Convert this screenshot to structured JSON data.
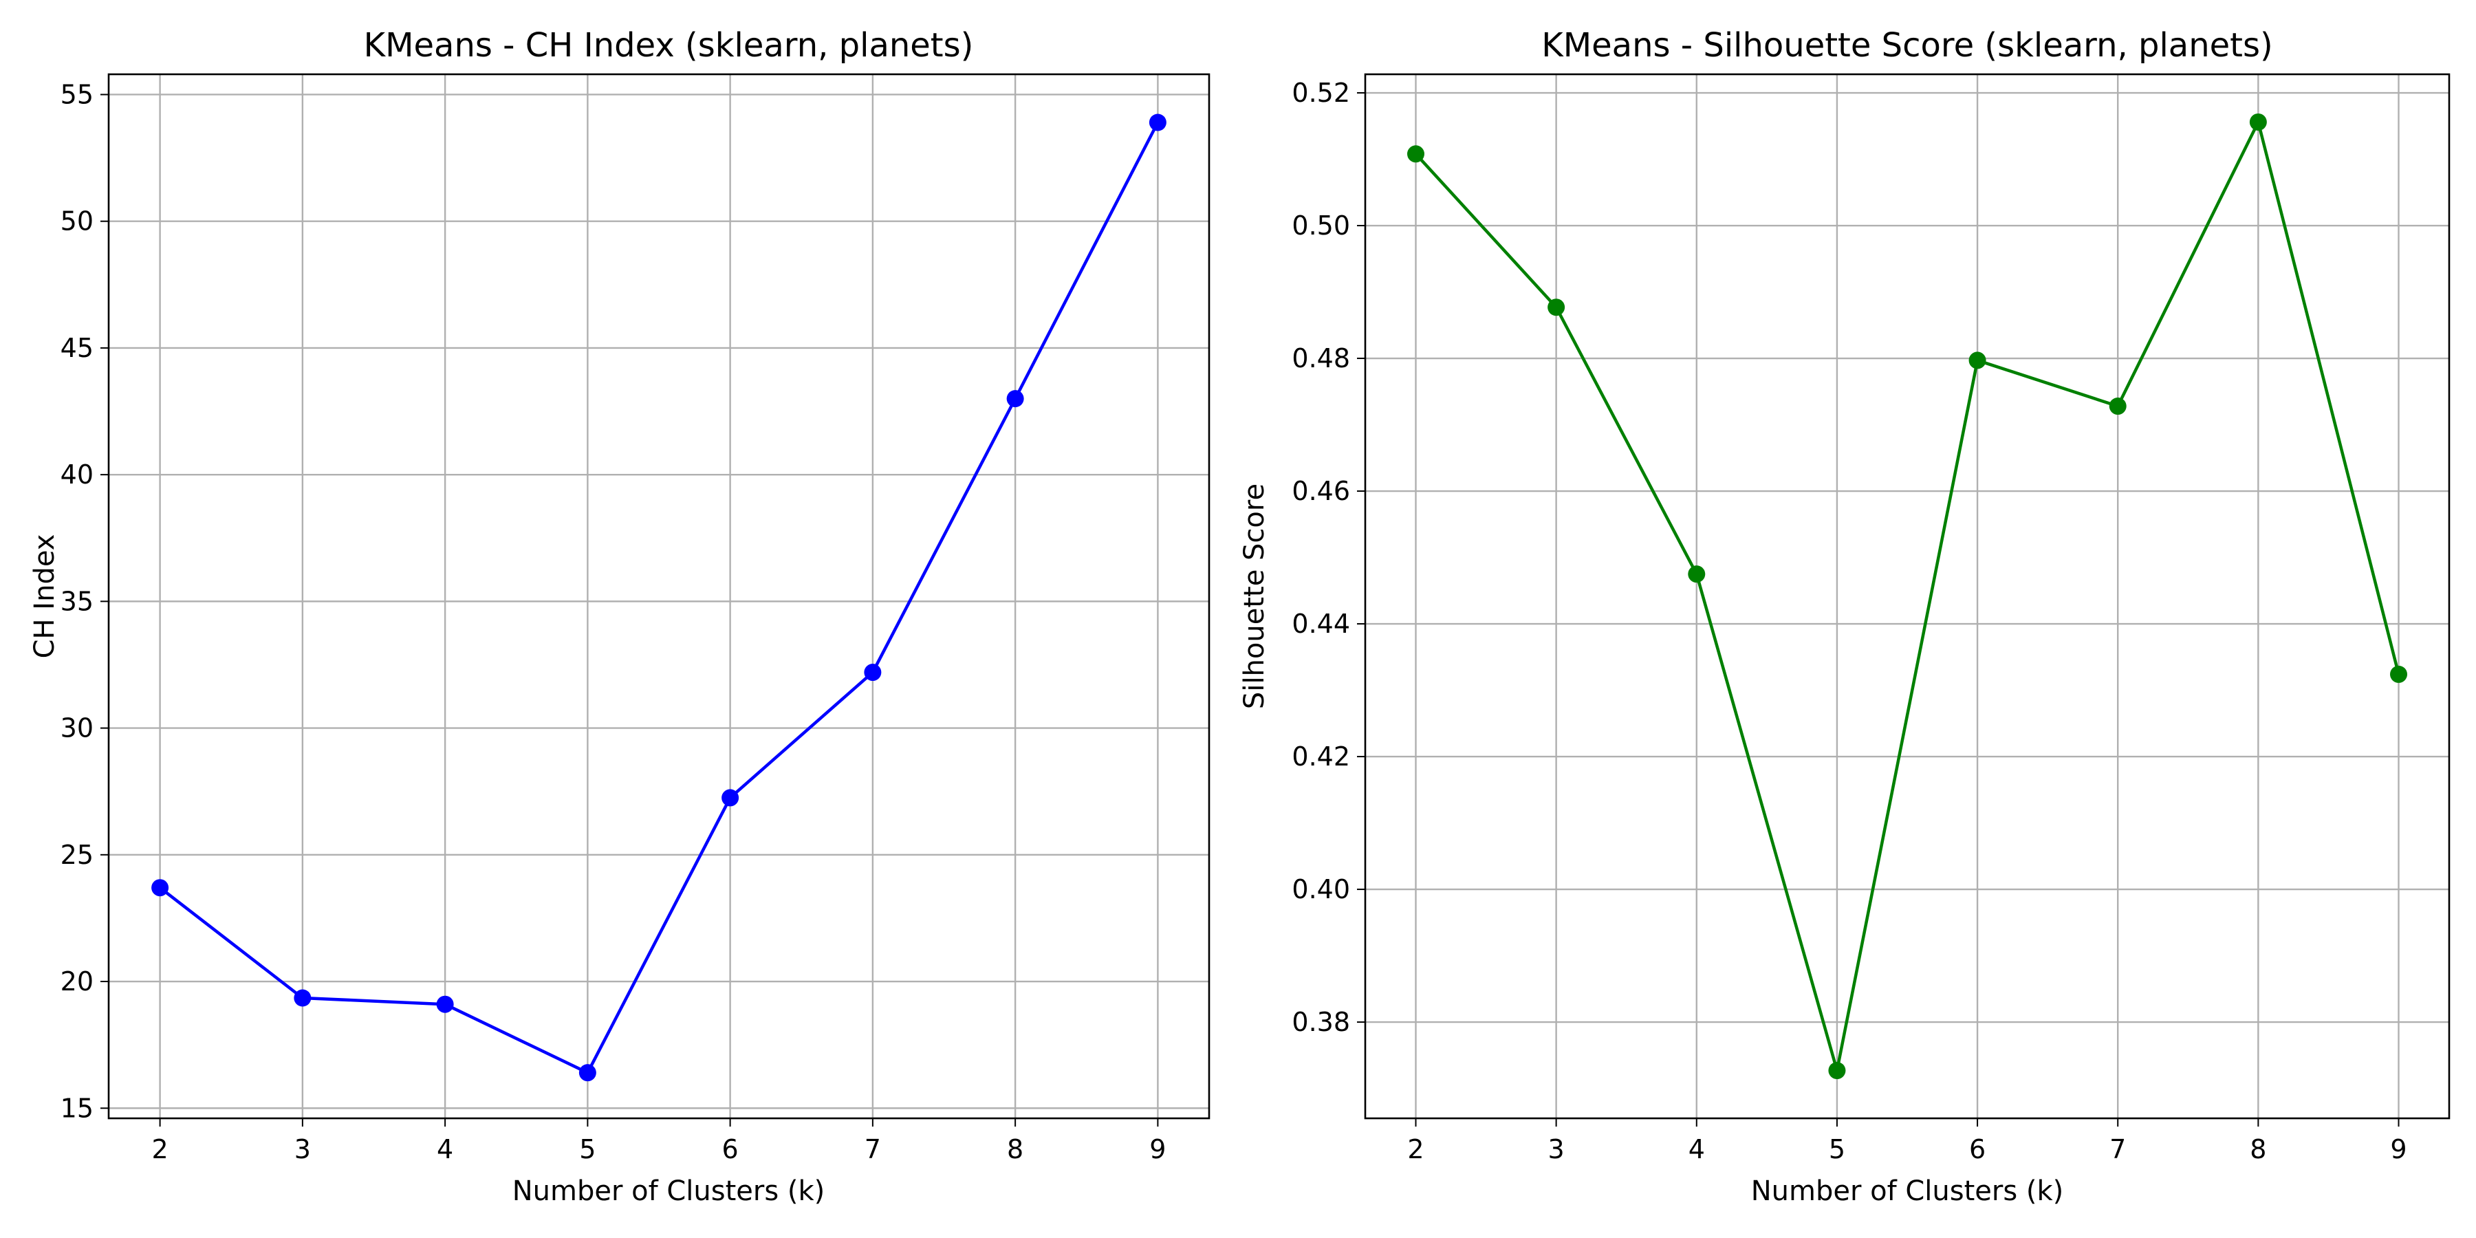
{
  "chart_data": [
    {
      "type": "line",
      "title": "KMeans - CH Index (sklearn, planets)",
      "xlabel": "Number of Clusters (k)",
      "ylabel": "CH Index",
      "x": [
        2,
        3,
        4,
        5,
        6,
        7,
        8,
        9
      ],
      "series": [
        {
          "values": [
            23.7,
            19.35,
            19.1,
            16.4,
            27.25,
            32.2,
            43.0,
            53.9
          ],
          "color": "#0000ff"
        }
      ],
      "xlim": [
        1.64,
        9.36
      ],
      "ylim": [
        14.6,
        55.8
      ],
      "xticks": [
        2,
        3,
        4,
        5,
        6,
        7,
        8,
        9
      ],
      "yticks": [
        15,
        20,
        25,
        30,
        35,
        40,
        45,
        50,
        55
      ],
      "grid": true,
      "marker": "circle"
    },
    {
      "type": "line",
      "title": "KMeans - Silhouette Score (sklearn, planets)",
      "xlabel": "Number of Clusters (k)",
      "ylabel": "Silhouette Score",
      "x": [
        2,
        3,
        4,
        5,
        6,
        7,
        8,
        9
      ],
      "series": [
        {
          "values": [
            0.5108,
            0.4877,
            0.4475,
            0.3727,
            0.4797,
            0.4728,
            0.5156,
            0.4324
          ],
          "color": "#008000"
        }
      ],
      "xlim": [
        1.64,
        9.36
      ],
      "ylim": [
        0.3655,
        0.5228
      ],
      "xticks": [
        2,
        3,
        4,
        5,
        6,
        7,
        8,
        9
      ],
      "yticks": [
        "0.38",
        "0.40",
        "0.42",
        "0.44",
        "0.46",
        "0.48",
        "0.50",
        "0.52"
      ],
      "grid": true,
      "marker": "circle"
    }
  ]
}
